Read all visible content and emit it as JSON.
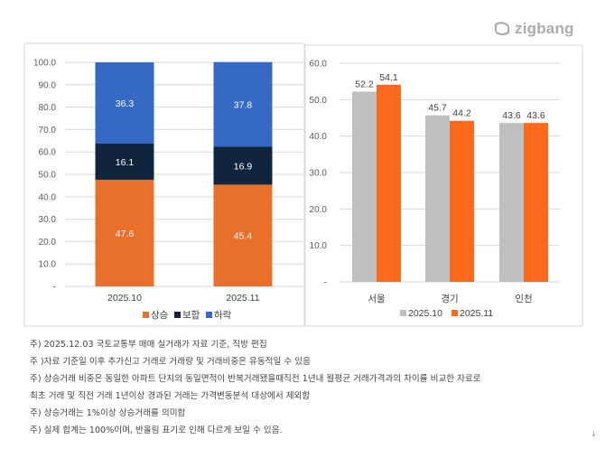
{
  "logo": {
    "text": "zigbang",
    "color": "#a9adb2"
  },
  "chart_data": [
    {
      "type": "bar",
      "stacked": true,
      "categories": [
        "2025.10",
        "2025.11"
      ],
      "series": [
        {
          "name": "상승",
          "values": [
            47.6,
            45.4
          ],
          "color": "#e8702a"
        },
        {
          "name": "보합",
          "values": [
            16.1,
            16.9
          ],
          "color": "#10243e"
        },
        {
          "name": "하락",
          "values": [
            36.3,
            37.8
          ],
          "color": "#3569c4"
        }
      ],
      "ylim": [
        0,
        100
      ],
      "yticks": [
        "-",
        "10.0",
        "20.0",
        "30.0",
        "40.0",
        "50.0",
        "60.0",
        "70.0",
        "80.0",
        "90.0",
        "100.0"
      ],
      "grid": true,
      "legend": "bottom"
    },
    {
      "type": "bar",
      "categories": [
        "서울",
        "경기",
        "인천"
      ],
      "series": [
        {
          "name": "2025.10",
          "values": [
            52.2,
            45.7,
            43.6
          ],
          "color": "#bfbfbf"
        },
        {
          "name": "2025.11",
          "values": [
            54.1,
            44.2,
            43.6
          ],
          "color": "#fb6a1c"
        }
      ],
      "ylim": [
        0,
        60
      ],
      "yticks": [
        "-",
        "10.0",
        "20.0",
        "30.0",
        "40.0",
        "50.0",
        "60.0"
      ],
      "grid": true,
      "legend": "bottom"
    }
  ],
  "notes": [
    "주) 2025.12.03 국토교통부 매매 실거래가 자료 기준, 직방 편집",
    "주 )자료 기준일 이후 추가신고 거래로 거래량 및 거래비중은 유동적일 수 있음",
    "주) 상승거래 비중은 동일한 아파트 단지의 동일면적이 반복거래됐을때직전 1년내 월평균 거래가격과의 차이를 비교한 자료로",
    "최초 거래 및 직전 거래 1년이상 경과된 거래는 가격변동분석 대상에서 제외함",
    "주) 상승거래는 1%이상 상승거래를 의미함",
    "주) 실제 합계는 100%이며, 반올림 표기로 인해 다르게 보일 수 있음."
  ]
}
